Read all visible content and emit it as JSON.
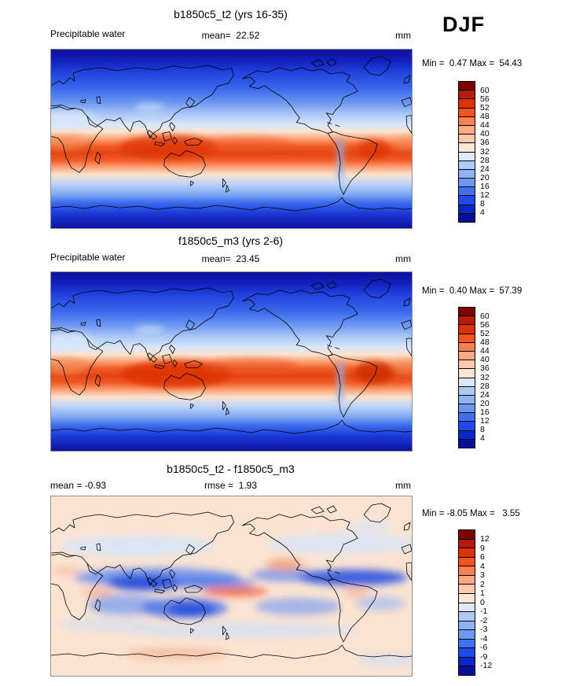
{
  "season": "DJF",
  "palette": [
    "#7E0001",
    "#B51C07",
    "#DC3206",
    "#F5521E",
    "#FB8250",
    "#FEA983",
    "#FEC9AA",
    "#FCE6D3",
    "#DBE9FB",
    "#AFC9F5",
    "#8FB2F3",
    "#6D98F1",
    "#3F70EF",
    "#1D4AE8",
    "#0728C9",
    "#061295"
  ],
  "panels": [
    {
      "title": "b1850c5_t2 (yrs 16-35)",
      "row": {
        "left": "Precipitable water",
        "center": "mean=  22.52",
        "right": "mm"
      },
      "stats": "Min =  0.47 Max =  54.43",
      "colorbar_labels": [
        "60",
        "56",
        "52",
        "48",
        "44",
        "40",
        "36",
        "32",
        "28",
        "24",
        "20",
        "16",
        "12",
        "8",
        "4"
      ]
    },
    {
      "title": "f1850c5_m3 (yrs 2-6)",
      "row": {
        "left": "Precipitable water",
        "center": "mean=  23.45",
        "right": "mm"
      },
      "stats": "Min =  0.40 Max =  57.39",
      "colorbar_labels": [
        "60",
        "56",
        "52",
        "48",
        "44",
        "40",
        "36",
        "32",
        "28",
        "24",
        "20",
        "16",
        "12",
        "8",
        "4"
      ]
    },
    {
      "title": "b1850c5_t2 - f1850c5_m3",
      "row": {
        "left": "mean = -0.93",
        "center": "rmse =  1.93",
        "right": "mm"
      },
      "stats": "Min = -8.05 Max =   3.55",
      "colorbar_labels": [
        "12",
        "9",
        "6",
        "4",
        "3",
        "2",
        "1",
        "0",
        "-1",
        "-2",
        "-3",
        "-4",
        "-6",
        "-9",
        "-12"
      ]
    }
  ],
  "chart_data": [
    {
      "type": "heatmap",
      "title": "b1850c5_t2 (yrs 16-35)",
      "variable": "Precipitable water",
      "units": "mm",
      "season": "DJF",
      "mean": 22.52,
      "min": 0.47,
      "max": 54.43,
      "levels": [
        4,
        8,
        12,
        16,
        20,
        24,
        28,
        32,
        36,
        40,
        44,
        48,
        52,
        56,
        60
      ],
      "legend_position": "right",
      "projection": "global lat-lon, Pacific-centered",
      "pattern": "dark navy blue at poles grading through blues to pale near 30N/30S; orange-red maximum band along the equator/ITCZ peaking over the Maritime Continent, tropical Pacific and Amazonia"
    },
    {
      "type": "heatmap",
      "title": "f1850c5_m3 (yrs 2-6)",
      "variable": "Precipitable water",
      "units": "mm",
      "season": "DJF",
      "mean": 23.45,
      "min": 0.4,
      "max": 57.39,
      "levels": [
        4,
        8,
        12,
        16,
        20,
        24,
        28,
        32,
        36,
        40,
        44,
        48,
        52,
        56,
        60
      ],
      "legend_position": "right",
      "projection": "global lat-lon, Pacific-centered",
      "pattern": "same structure as first panel with a broader, more intense equatorial red band over Indonesia/north Australia and South America"
    },
    {
      "type": "heatmap",
      "title": "b1850c5_t2 - f1850c5_m3",
      "units": "mm",
      "season": "DJF",
      "mean": -0.93,
      "rmse": 1.93,
      "min": -8.05,
      "max": 3.55,
      "levels": [
        -12,
        -9,
        -6,
        -4,
        -3,
        -2,
        -1,
        0,
        1,
        2,
        3,
        4,
        6,
        9,
        12
      ],
      "legend_position": "right",
      "projection": "global lat-lon, Pacific-centered",
      "pattern": "pale peach background (near zero) with strong negative (blue) bands across the tropics and subtropics, darkest over the west Pacific, Australia and the Atlantic ITCZ; small positive (red-orange) patches over the central equatorial Pacific and off Central America"
    }
  ]
}
